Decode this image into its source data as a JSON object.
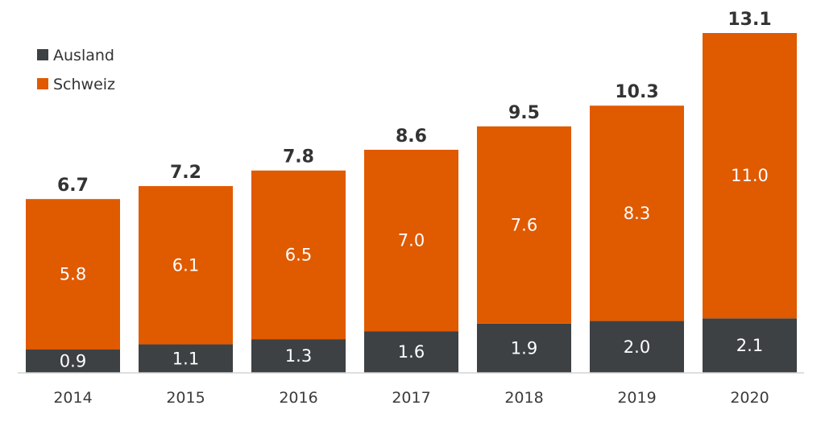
{
  "chart_data": {
    "type": "bar",
    "stacked": true,
    "categories": [
      "2014",
      "2015",
      "2016",
      "2017",
      "2018",
      "2019",
      "2020"
    ],
    "series": [
      {
        "name": "Ausland",
        "color": "#3d4144",
        "values": [
          0.9,
          1.1,
          1.3,
          1.6,
          1.9,
          2.0,
          2.1
        ]
      },
      {
        "name": "Schweiz",
        "color": "#e05a00",
        "values": [
          5.8,
          6.1,
          6.5,
          7.0,
          7.6,
          8.3,
          11.0
        ]
      }
    ],
    "totals": [
      6.7,
      7.2,
      7.8,
      8.6,
      9.5,
      10.3,
      13.1
    ],
    "ylim": [
      0,
      13.1
    ],
    "legend_position": "top-left",
    "grid": false
  }
}
